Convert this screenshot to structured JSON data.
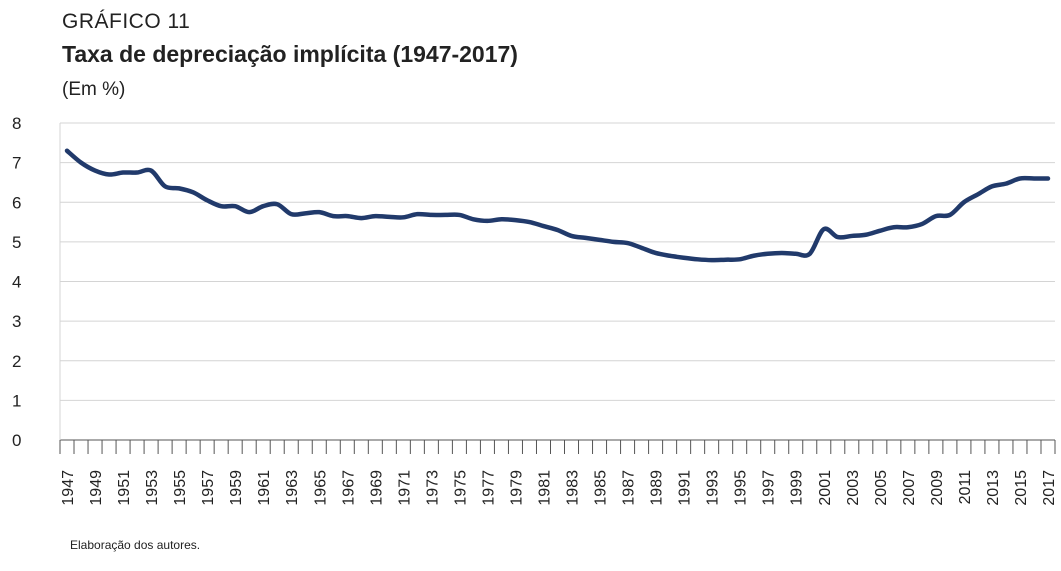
{
  "chart_data": {
    "type": "line",
    "kicker": "GRÁFICO 11",
    "title": "Taxa de depreciação implícita (1947-2017)",
    "subtitle": "(Em %)",
    "source": "Elaboração dos autores.",
    "categories": [
      "1947",
      null,
      "1949",
      null,
      "1951",
      null,
      "1953",
      null,
      "1955",
      null,
      "1957",
      null,
      "1959",
      null,
      "1961",
      null,
      "1963",
      null,
      "1965",
      null,
      "1967",
      null,
      "1969",
      null,
      "1971",
      null,
      "1973",
      null,
      "1975",
      null,
      "1977",
      null,
      "1979",
      null,
      "1981",
      null,
      "1983",
      null,
      "1985",
      null,
      "1987",
      null,
      "1989",
      null,
      "1991",
      null,
      "1993",
      null,
      "1995",
      null,
      "1997",
      null,
      "1999",
      null,
      "2001",
      null,
      "2003",
      null,
      "2005",
      null,
      "2007",
      null,
      "2009",
      null,
      "2011",
      null,
      "2013",
      null,
      "2015",
      null,
      "2017"
    ],
    "series": [
      {
        "color": "#213a6b",
        "values": [
          7.3,
          7.0,
          6.8,
          6.7,
          6.75,
          6.75,
          6.8,
          6.4,
          6.35,
          6.25,
          6.05,
          5.9,
          5.9,
          5.75,
          5.9,
          5.95,
          5.7,
          5.72,
          5.75,
          5.65,
          5.65,
          5.6,
          5.65,
          5.63,
          5.62,
          5.7,
          5.68,
          5.68,
          5.68,
          5.57,
          5.53,
          5.57,
          5.55,
          5.5,
          5.4,
          5.3,
          5.15,
          5.1,
          5.05,
          5.0,
          4.97,
          4.85,
          4.72,
          4.65,
          4.6,
          4.56,
          4.54,
          4.55,
          4.56,
          4.65,
          4.7,
          4.72,
          4.7,
          4.7,
          5.32,
          5.12,
          5.15,
          5.18,
          5.28,
          5.37,
          5.37,
          5.45,
          5.65,
          5.68,
          6.0,
          6.2,
          6.4,
          6.47,
          6.6,
          6.6,
          6.6
        ]
      }
    ],
    "ylim": [
      0,
      8
    ],
    "yticks": [
      0,
      1,
      2,
      3,
      4,
      5,
      6,
      7,
      8
    ],
    "grid": true
  }
}
